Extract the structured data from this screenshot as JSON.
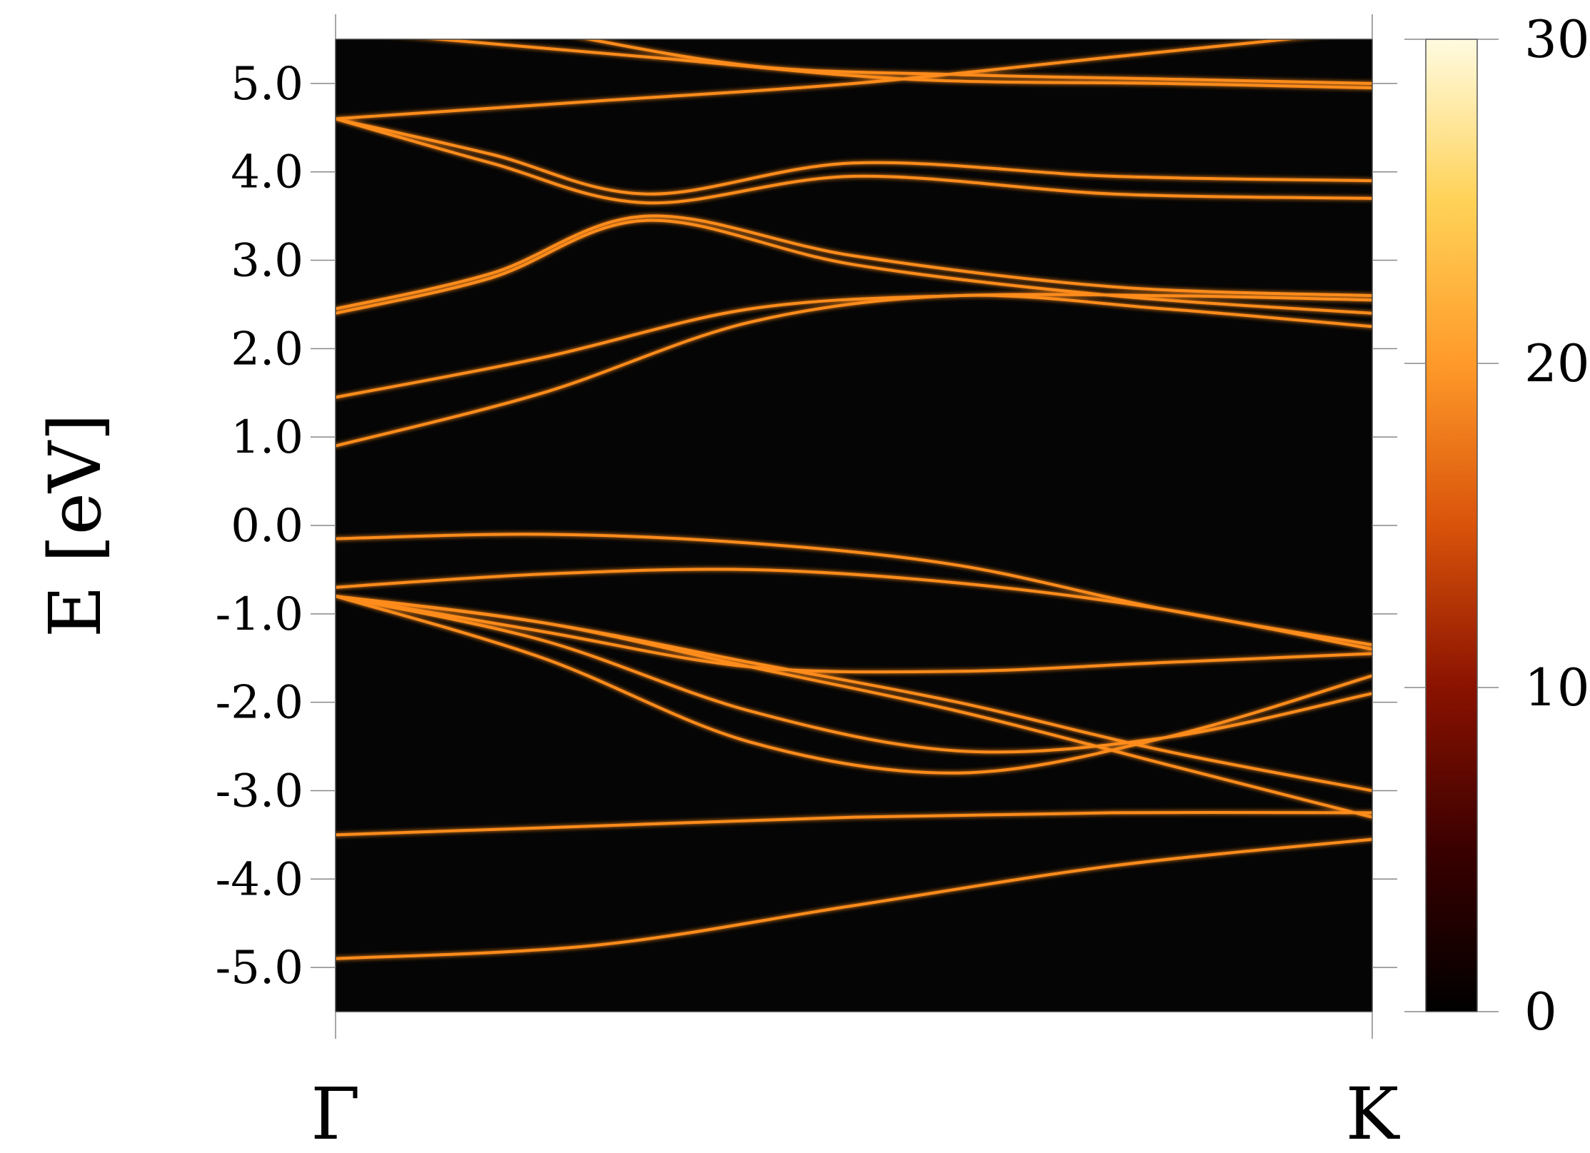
{
  "chart_data": {
    "type": "heatmap",
    "title": "",
    "ylabel": "E [eV]",
    "xlabel": "",
    "x_ticks": [
      "Γ",
      "K"
    ],
    "y_ticks": [
      "5.0",
      "4.0",
      "3.0",
      "2.0",
      "1.0",
      "0.0",
      "-1.0",
      "-2.0",
      "-3.0",
      "-4.0",
      "-5.0"
    ],
    "y_tick_values": [
      5,
      4,
      3,
      2,
      1,
      0,
      -1,
      -2,
      -3,
      -4,
      -5
    ],
    "ylim": [
      -5.5,
      5.5
    ],
    "xlim": [
      0,
      1
    ],
    "grid": false,
    "colorbar": {
      "range": [
        0,
        30
      ],
      "ticks": [
        "0",
        "10",
        "20",
        "30"
      ],
      "tick_values": [
        0,
        10,
        20,
        30
      ],
      "colormap": [
        "#000000",
        "#3a0000",
        "#8a1200",
        "#d9530a",
        "#ff9a2a",
        "#ffd257",
        "#fffbe0"
      ]
    },
    "background_color": "#050505",
    "band_color": "#ff8c1a",
    "bands": [
      {
        "x": [
          0,
          0.25,
          0.5,
          0.75,
          1
        ],
        "y": [
          -4.9,
          -4.75,
          -4.3,
          -3.85,
          -3.55
        ]
      },
      {
        "x": [
          0,
          0.25,
          0.5,
          0.75,
          1
        ],
        "y": [
          -3.5,
          -3.4,
          -3.3,
          -3.25,
          -3.25
        ]
      },
      {
        "x": [
          0,
          0.2,
          0.4,
          0.6,
          0.8,
          1
        ],
        "y": [
          -0.8,
          -1.1,
          -1.6,
          -2.1,
          -2.7,
          -3.3
        ]
      },
      {
        "x": [
          0,
          0.2,
          0.4,
          0.6,
          0.8,
          1
        ],
        "y": [
          -0.8,
          -1.1,
          -1.55,
          -2.0,
          -2.55,
          -3.0
        ]
      },
      {
        "x": [
          0,
          0.2,
          0.4,
          0.6,
          0.8,
          1
        ],
        "y": [
          -0.8,
          -1.3,
          -2.1,
          -2.55,
          -2.4,
          -1.9
        ]
      },
      {
        "x": [
          0,
          0.2,
          0.4,
          0.6,
          0.8,
          1
        ],
        "y": [
          -0.8,
          -1.5,
          -2.45,
          -2.8,
          -2.4,
          -1.7
        ]
      },
      {
        "x": [
          0,
          0.2,
          0.4,
          0.6,
          0.8,
          1
        ],
        "y": [
          -0.8,
          -1.2,
          -1.6,
          -1.65,
          -1.55,
          -1.45
        ]
      },
      {
        "x": [
          0,
          0.2,
          0.4,
          0.6,
          0.8,
          1
        ],
        "y": [
          -0.7,
          -0.55,
          -0.5,
          -0.65,
          -0.95,
          -1.4
        ]
      },
      {
        "x": [
          0,
          0.2,
          0.4,
          0.6,
          0.8,
          1
        ],
        "y": [
          -0.15,
          -0.1,
          -0.2,
          -0.45,
          -0.95,
          -1.35
        ]
      },
      {
        "x": [
          0,
          0.2,
          0.4,
          0.6,
          0.8,
          1
        ],
        "y": [
          0.9,
          1.5,
          2.3,
          2.6,
          2.45,
          2.25
        ]
      },
      {
        "x": [
          0,
          0.2,
          0.4,
          0.6,
          0.8,
          1
        ],
        "y": [
          1.45,
          1.9,
          2.45,
          2.6,
          2.6,
          2.55
        ]
      },
      {
        "x": [
          0,
          0.15,
          0.3,
          0.5,
          0.75,
          1
        ],
        "y": [
          2.4,
          2.8,
          3.45,
          2.95,
          2.6,
          2.4
        ]
      },
      {
        "x": [
          0,
          0.15,
          0.3,
          0.5,
          0.75,
          1
        ],
        "y": [
          2.45,
          2.85,
          3.5,
          3.05,
          2.7,
          2.6
        ]
      },
      {
        "x": [
          0,
          0.15,
          0.3,
          0.5,
          0.75,
          1
        ],
        "y": [
          4.6,
          4.1,
          3.65,
          3.95,
          3.75,
          3.7
        ]
      },
      {
        "x": [
          0,
          0.15,
          0.3,
          0.5,
          0.75,
          1
        ],
        "y": [
          4.6,
          4.2,
          3.75,
          4.1,
          3.95,
          3.9
        ]
      },
      {
        "x": [
          0,
          0.25,
          0.5,
          0.75,
          1
        ],
        "y": [
          4.6,
          4.8,
          5.0,
          5.3,
          5.6
        ]
      },
      {
        "x": [
          0,
          0.3,
          0.55,
          0.8,
          1
        ],
        "y": [
          5.6,
          5.3,
          5.05,
          5.0,
          4.95
        ]
      },
      {
        "x": [
          0.2,
          0.4,
          0.6,
          0.8,
          1
        ],
        "y": [
          5.6,
          5.2,
          5.1,
          5.05,
          5.0
        ]
      }
    ]
  }
}
